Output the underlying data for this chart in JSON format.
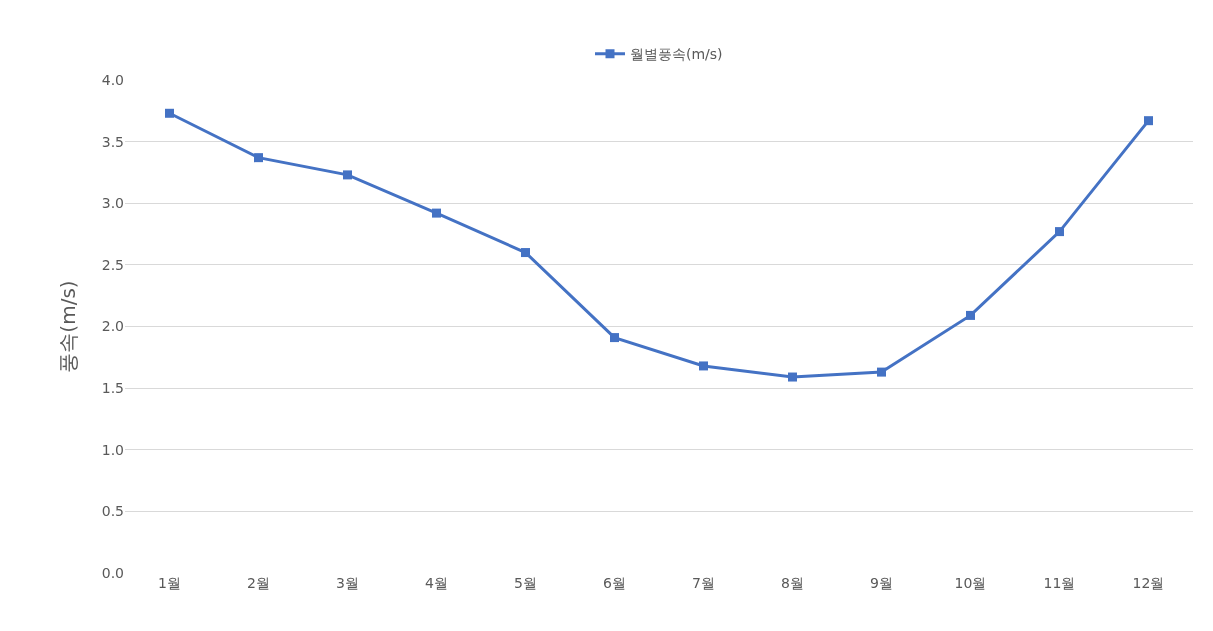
{
  "chart_data": {
    "type": "line",
    "ylabel": "풍속(m/s)",
    "categories": [
      "1월",
      "2월",
      "3월",
      "4월",
      "5월",
      "6월",
      "7월",
      "8월",
      "9월",
      "10월",
      "11월",
      "12월"
    ],
    "series": [
      {
        "name": "월별풍속(m/s)",
        "color": "#4472c4",
        "values": [
          3.73,
          3.37,
          3.23,
          2.92,
          2.6,
          1.91,
          1.68,
          1.59,
          1.63,
          2.09,
          2.77,
          3.67
        ]
      }
    ],
    "ylim": [
      0,
      4
    ],
    "yticks": [
      {
        "value": 0,
        "label": "0.0"
      },
      {
        "value": 0.5,
        "label": "0.5"
      },
      {
        "value": 1,
        "label": "1.0"
      },
      {
        "value": 1.5,
        "label": "1.5"
      },
      {
        "value": 2,
        "label": "2.0"
      },
      {
        "value": 2.5,
        "label": "2.5"
      },
      {
        "value": 3,
        "label": "3.0"
      },
      {
        "value": 3.5,
        "label": "3.5"
      },
      {
        "value": 4,
        "label": "4.0"
      }
    ],
    "grid": "y",
    "legend": "top",
    "marker": "square",
    "line_style": "solid"
  }
}
